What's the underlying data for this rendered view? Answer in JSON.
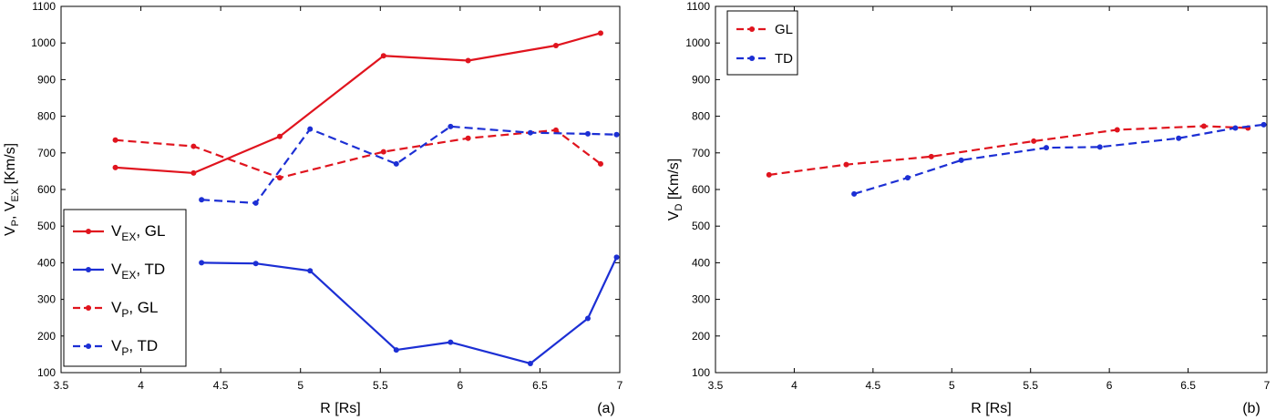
{
  "chart_data": [
    {
      "type": "line",
      "panel_label": "(a)",
      "xlabel": "R [Rs]",
      "ylabel": {
        "base1": "V",
        "sub1": "P",
        "sep": ", ",
        "base2": "V",
        "sub2": "EX",
        "unit": " [Km/s]"
      },
      "xlim": [
        3.5,
        7
      ],
      "ylim": [
        100,
        1100
      ],
      "xticks": [
        "3.5",
        "4",
        "4.5",
        "5",
        "5.5",
        "6",
        "6.5",
        "7"
      ],
      "yticks": [
        "100",
        "200",
        "300",
        "400",
        "500",
        "600",
        "700",
        "800",
        "900",
        "1000",
        "1100"
      ],
      "legend_position": "bottom-left",
      "series": [
        {
          "name": "V_EX, GL",
          "legend": {
            "base": "V",
            "sub": "EX",
            "rest": ", GL"
          },
          "color": "#e0141e",
          "dash": "solid",
          "x": [
            3.84,
            4.33,
            4.87,
            5.52,
            6.05,
            6.6,
            6.88
          ],
          "y": [
            660,
            645,
            745,
            965,
            952,
            993,
            1027
          ]
        },
        {
          "name": "V_EX, TD",
          "legend": {
            "base": "V",
            "sub": "EX",
            "rest": ", TD"
          },
          "color": "#1c2fd4",
          "dash": "solid",
          "x": [
            4.38,
            4.72,
            5.06,
            5.6,
            5.94,
            6.44,
            6.8,
            6.98
          ],
          "y": [
            400,
            398,
            378,
            162,
            183,
            125,
            248,
            415
          ]
        },
        {
          "name": "V_P, GL",
          "legend": {
            "base": "V",
            "sub": "P",
            "rest": ", GL"
          },
          "color": "#e0141e",
          "dash": "dashed",
          "x": [
            3.84,
            4.33,
            4.87,
            5.52,
            6.05,
            6.6,
            6.88
          ],
          "y": [
            735,
            718,
            632,
            703,
            740,
            762,
            670
          ]
        },
        {
          "name": "V_P, TD",
          "legend": {
            "base": "V",
            "sub": "P",
            "rest": ", TD"
          },
          "color": "#1c2fd4",
          "dash": "dashed",
          "x": [
            4.38,
            4.72,
            5.06,
            5.6,
            5.94,
            6.44,
            6.8,
            6.98
          ],
          "y": [
            572,
            563,
            765,
            670,
            772,
            755,
            752,
            750
          ]
        }
      ]
    },
    {
      "type": "line",
      "panel_label": "(b)",
      "xlabel": "R [Rs]",
      "ylabel": {
        "base1": "V",
        "sub1": "D",
        "sep": "",
        "base2": "",
        "sub2": "",
        "unit": " [Km/s]"
      },
      "xlim": [
        3.5,
        7
      ],
      "ylim": [
        100,
        1100
      ],
      "xticks": [
        "3.5",
        "4",
        "4.5",
        "5",
        "5.5",
        "6",
        "6.5",
        "7"
      ],
      "yticks": [
        "100",
        "200",
        "300",
        "400",
        "500",
        "600",
        "700",
        "800",
        "900",
        "1000",
        "1100"
      ],
      "legend_position": "top-left",
      "series": [
        {
          "name": "GL",
          "legend": {
            "base": "GL",
            "sub": "",
            "rest": ""
          },
          "color": "#e0141e",
          "dash": "dashed",
          "x": [
            3.84,
            4.33,
            4.87,
            5.52,
            6.05,
            6.6,
            6.88
          ],
          "y": [
            640,
            668,
            690,
            732,
            763,
            773,
            768
          ]
        },
        {
          "name": "TD",
          "legend": {
            "base": "TD",
            "sub": "",
            "rest": ""
          },
          "color": "#1c2fd4",
          "dash": "dashed",
          "x": [
            4.38,
            4.72,
            5.06,
            5.6,
            5.94,
            6.44,
            6.8,
            6.98
          ],
          "y": [
            588,
            632,
            680,
            714,
            716,
            740,
            768,
            777
          ]
        }
      ]
    }
  ]
}
